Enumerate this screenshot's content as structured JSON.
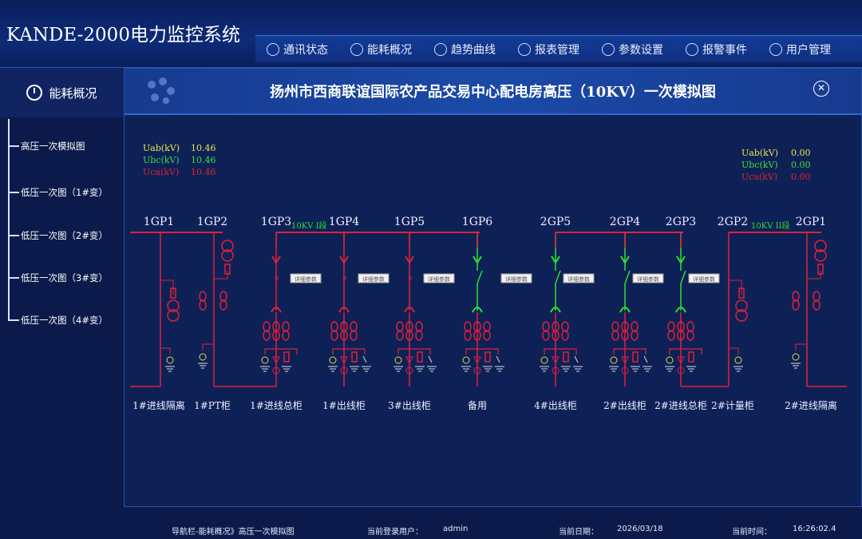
{
  "app": {
    "title": "KANDE-2000电力监控系统"
  },
  "nav": [
    {
      "label": "通讯状态",
      "icon": "signal-icon"
    },
    {
      "label": "能耗概况",
      "icon": "clock-icon"
    },
    {
      "label": "趋势曲线",
      "icon": "trend-icon"
    },
    {
      "label": "报表管理",
      "icon": "report-icon"
    },
    {
      "label": "参数设置",
      "icon": "gear-icon"
    },
    {
      "label": "报警事件",
      "icon": "alarm-icon"
    },
    {
      "label": "用户管理",
      "icon": "user-icon"
    }
  ],
  "sidebar": {
    "header": "能耗概况",
    "items": [
      "高压一次模拟图",
      "低压一次图（1#变）",
      "低压一次图（2#变）",
      "低压一次图（3#变）",
      "低压一次图（4#变）"
    ]
  },
  "main": {
    "title": "扬州市西商联谊国际农产品交易中心配电房高压（10KV）一次模拟图"
  },
  "meters": {
    "left": [
      {
        "label": "Uab(kV)",
        "value": "10.46",
        "color": "#e8e84a"
      },
      {
        "label": "Ubc(kV)",
        "value": "10.46",
        "color": "#3ce03c"
      },
      {
        "label": "Uca(kV)",
        "value": "10.46",
        "color": "#e02030"
      }
    ],
    "right": [
      {
        "label": "Uab(kV)",
        "value": "0.00",
        "color": "#e8e84a"
      },
      {
        "label": "Ubc(kV)",
        "value": "0.00",
        "color": "#3ce03c"
      },
      {
        "label": "Uca(kV)",
        "value": "0.00",
        "color": "#e02030"
      }
    ]
  },
  "bus": {
    "section1": "10KV I段",
    "section2": "10KV II段"
  },
  "detail_button": "详细参数",
  "panels": [
    {
      "code": "1GP1",
      "name": "1#进线隔离",
      "type": "isolation"
    },
    {
      "code": "1GP2",
      "name": "1#PT柜",
      "type": "pt"
    },
    {
      "code": "1GP3",
      "name": "1#进线总柜",
      "type": "feeder",
      "state": "closed"
    },
    {
      "code": "1GP4",
      "name": "1#出线柜",
      "type": "feeder",
      "state": "closed"
    },
    {
      "code": "1GP5",
      "name": "3#出线柜",
      "type": "feeder",
      "state": "closed"
    },
    {
      "code": "1GP6",
      "name": "备用",
      "type": "feeder",
      "state": "open"
    },
    {
      "code": "2GP5",
      "name": "4#出线柜",
      "type": "feeder",
      "state": "open"
    },
    {
      "code": "2GP4",
      "name": "2#出线柜",
      "type": "feeder",
      "state": "open"
    },
    {
      "code": "2GP3",
      "name": "2#进线总柜",
      "type": "feeder",
      "state": "open"
    },
    {
      "code": "2GP2",
      "name": "2#计量柜",
      "type": "isolation"
    },
    {
      "code": "2GP1",
      "name": "2#进线隔离",
      "type": "pt"
    }
  ],
  "colors": {
    "energized": "#e0203a",
    "open": "#2ee02e",
    "background": "#0e2157"
  },
  "footer": {
    "breadcrumb": "导航栏-能耗概况》高压一次模拟图",
    "user_label": "当前登录用户：",
    "user": "admin",
    "date_label": "当前日期：",
    "date": "2026/03/18",
    "time_label": "当前时间：",
    "time": "16:26:02.4"
  }
}
